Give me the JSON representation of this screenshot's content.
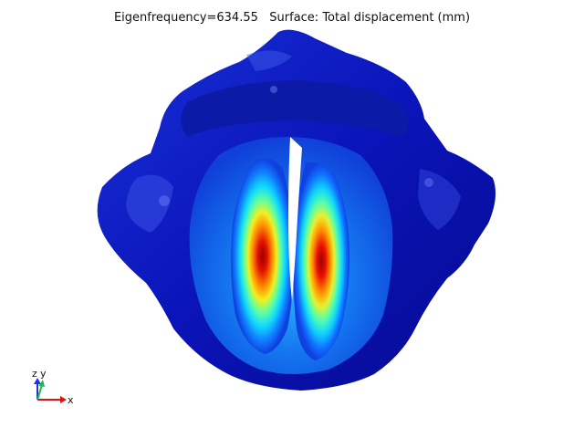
{
  "title": {
    "eigenfrequency": "Eigenfrequency=634.55",
    "surface": "Surface: Total displacement (mm)"
  },
  "axes": {
    "x": "x",
    "y": "y",
    "z": "z"
  },
  "colors": {
    "background": "#ffffff",
    "colormap": [
      "#00008f",
      "#0000ff",
      "#00a0ff",
      "#00ffff",
      "#7fff7f",
      "#ffff00",
      "#ff7f00",
      "#ff0000",
      "#800000"
    ],
    "x_axis": "#e01010",
    "y_axis": "#10c040",
    "z_axis": "#2030e0"
  }
}
